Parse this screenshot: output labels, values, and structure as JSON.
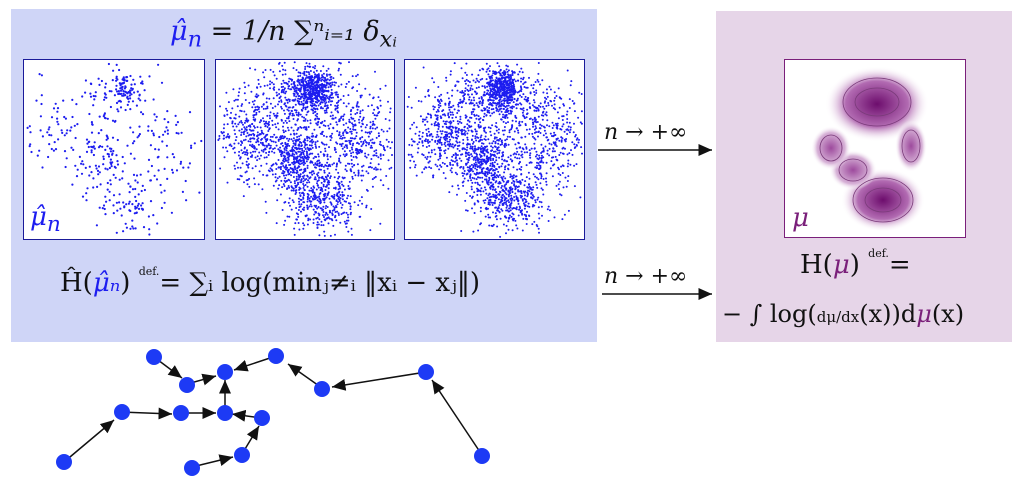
{
  "top_formula": "μ̂ₙ = 1/n ∑ᵢ₌₁ⁿ δₓᵢ",
  "top_formula_parts": {
    "lhs": "μ̂",
    "lhs_sub": "n",
    "equals": " = ",
    "rhs": "1/n ∑ⁿᵢ₌₁ δ",
    "rhs_sub": "xᵢ"
  },
  "left_caption": "μ̂ₙ",
  "left_caption_parts": {
    "sym": "μ̂",
    "sub": "n"
  },
  "right_caption": "μ",
  "arrow_label_1": "n → +∞",
  "arrow_label_2": "n → +∞",
  "estimator_formula": {
    "lhs": "Ĥ(",
    "lhs_mu": "μ̂ₙ",
    "lhs_close": ")",
    "defeq": "def.",
    "rhs": " ∑ᵢ log(minⱼ≠ᵢ ‖xᵢ − xⱼ‖)"
  },
  "entropy_formula": {
    "line1_pre": "H(",
    "line1_mu": "μ",
    "line1_post": ")",
    "defeq": "def.",
    "line2_pre": "− ∫ log(",
    "line2_frac": "dμ/dx",
    "line2_mid": "(x))d",
    "line2_mu": "μ",
    "line2_post": "(x)"
  },
  "colors": {
    "blue": "#1d1df0",
    "purple": "#7a1f7a",
    "left_panel": "#cfd5f7",
    "right_panel": "#e6d5e8"
  }
}
